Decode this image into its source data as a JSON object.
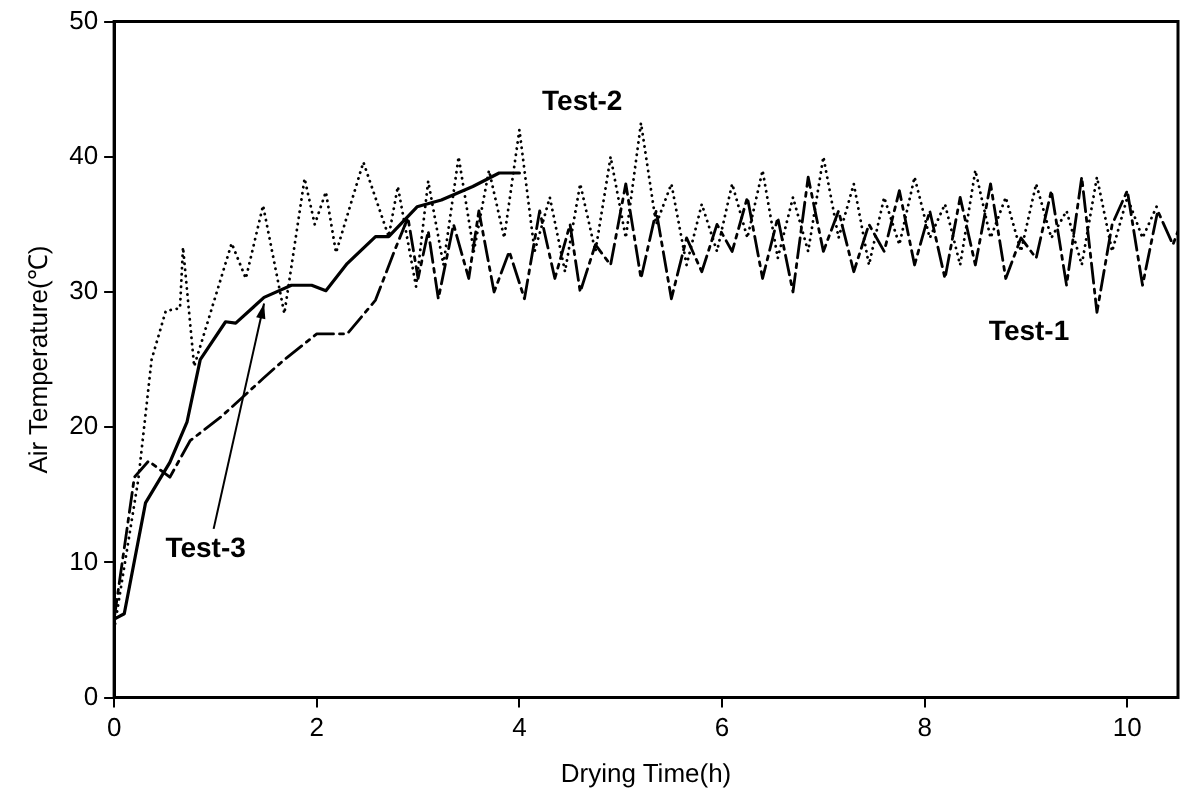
{
  "chart_data": {
    "type": "line",
    "xlabel": "Drying Time(h)",
    "ylabel": "Air Temperature(℃)",
    "xlim": [
      0,
      10.5
    ],
    "xticks": [
      0,
      2,
      4,
      6,
      8,
      10
    ],
    "ylim": [
      0,
      50
    ],
    "yticks": [
      0,
      10,
      20,
      30,
      40,
      50
    ],
    "grid": false,
    "legend": false,
    "marker": "none",
    "series": [
      {
        "name": "Test-1",
        "color": "#000000",
        "line_style": "dashed",
        "x": [
          0,
          0.2,
          0.34,
          0.55,
          0.75,
          1.06,
          1.47,
          1.68,
          2.0,
          2.3,
          2.58,
          2.77,
          2.9,
          3.0,
          3.1,
          3.2,
          3.35,
          3.5,
          3.6,
          3.75,
          3.9,
          4.05,
          4.2,
          4.35,
          4.5,
          4.6,
          4.75,
          4.9,
          5.05,
          5.2,
          5.35,
          5.5,
          5.65,
          5.8,
          5.95,
          6.1,
          6.25,
          6.4,
          6.55,
          6.7,
          6.85,
          7.0,
          7.15,
          7.3,
          7.45,
          7.6,
          7.75,
          7.9,
          8.05,
          8.2,
          8.35,
          8.5,
          8.65,
          8.8,
          8.95,
          9.1,
          9.25,
          9.4,
          9.55,
          9.7,
          9.85,
          10.0,
          10.15,
          10.3,
          10.45,
          10.5
        ],
        "values": [
          5.8,
          16.3,
          17.5,
          16.3,
          19,
          20.8,
          23.6,
          25,
          26.9,
          26.9,
          29.4,
          33.1,
          35.5,
          31,
          34.5,
          29.5,
          35,
          31,
          36,
          30,
          33,
          29.5,
          36,
          31,
          35,
          30,
          33.5,
          32,
          38,
          31,
          36,
          29.5,
          34,
          31.5,
          35,
          33,
          37,
          31,
          35.5,
          30,
          38.5,
          33,
          36,
          31.5,
          35,
          33,
          37.5,
          32,
          36,
          31,
          37,
          32,
          38,
          31,
          34,
          32.5,
          37.5,
          30.5,
          38.5,
          28.5,
          35,
          37.5,
          30.5,
          36,
          33.5,
          34.5
        ]
      },
      {
        "name": "Test-2",
        "color": "#000000",
        "line_style": "dotted",
        "x": [
          0,
          0.24,
          0.37,
          0.51,
          0.65,
          0.68,
          0.79,
          1.16,
          1.3,
          1.47,
          1.68,
          1.88,
          1.98,
          2.09,
          2.19,
          2.46,
          2.71,
          2.8,
          2.98,
          3.1,
          3.25,
          3.4,
          3.55,
          3.7,
          3.85,
          4.0,
          4.15,
          4.3,
          4.45,
          4.6,
          4.75,
          4.9,
          5.05,
          5.2,
          5.35,
          5.5,
          5.65,
          5.8,
          5.95,
          6.1,
          6.25,
          6.4,
          6.55,
          6.7,
          6.85,
          7.0,
          7.15,
          7.3,
          7.45,
          7.6,
          7.75,
          7.9,
          8.05,
          8.2,
          8.35,
          8.5,
          8.65,
          8.8,
          8.95,
          9.1,
          9.25,
          9.4,
          9.55,
          9.7,
          9.85,
          10.0,
          10.15,
          10.3
        ],
        "values": [
          5,
          16.2,
          25,
          28.6,
          28.8,
          33.3,
          24.5,
          33.6,
          31,
          36.4,
          28.4,
          38.4,
          35,
          37.4,
          32.9,
          39.6,
          34.1,
          37.8,
          30.4,
          38.2,
          32,
          40,
          33,
          39,
          34,
          42,
          33,
          37,
          31.5,
          38,
          33,
          40,
          34,
          42.5,
          35,
          38,
          32,
          36.5,
          33,
          38,
          34,
          39,
          32.5,
          37,
          33,
          40,
          34,
          38,
          32,
          37,
          33.5,
          38.5,
          34,
          36.5,
          32,
          39,
          34,
          37,
          33,
          38,
          34,
          36,
          32,
          38.5,
          33,
          37,
          34,
          36.5
        ]
      },
      {
        "name": "Test-3",
        "color": "#000000",
        "line_style": "solid",
        "x": [
          0,
          0.1,
          0.31,
          0.55,
          0.72,
          0.85,
          1.1,
          1.2,
          1.48,
          1.75,
          1.95,
          2.09,
          2.3,
          2.58,
          2.71,
          2.99,
          3.23,
          3.54,
          3.8,
          4.0
        ],
        "values": [
          5.8,
          6.2,
          14.4,
          17.4,
          20.4,
          25,
          27.8,
          27.7,
          29.6,
          30.5,
          30.5,
          30.1,
          32.1,
          34.1,
          34.1,
          36.3,
          36.8,
          37.8,
          38.8,
          38.8
        ]
      }
    ]
  }
}
